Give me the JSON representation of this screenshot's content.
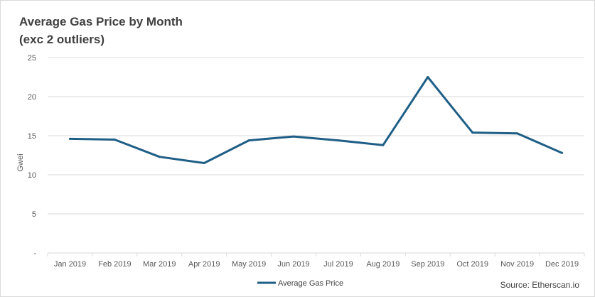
{
  "title_line1": "Average Gas Price by Month",
  "title_line2": "(exc 2 outliers)",
  "source": "Source: Etherscan.io",
  "colors": {
    "line": "#1f5f86",
    "grid": "#d9d9d9",
    "text": "#404040"
  },
  "chart_data": {
    "type": "line",
    "title": "Average Gas Price by Month (exc 2 outliers)",
    "xlabel": "",
    "ylabel": "Gwei",
    "ylim": [
      0,
      25
    ],
    "yticks": [
      0,
      5,
      10,
      15,
      20,
      25
    ],
    "ytick_labels": [
      "-",
      "5",
      "10",
      "15",
      "20",
      "25"
    ],
    "grid": true,
    "legend_position": "bottom",
    "categories": [
      "Jan 2019",
      "Feb 2019",
      "Mar 2019",
      "Apr 2019",
      "May 2019",
      "Jun 2019",
      "Jul 2019",
      "Aug 2019",
      "Sep 2019",
      "Oct 2019",
      "Nov 2019",
      "Dec 2019"
    ],
    "series": [
      {
        "name": "Average Gas Price",
        "values": [
          14.6,
          14.5,
          12.3,
          11.5,
          14.4,
          14.9,
          14.4,
          13.8,
          22.5,
          15.4,
          15.3,
          12.8
        ]
      }
    ]
  }
}
